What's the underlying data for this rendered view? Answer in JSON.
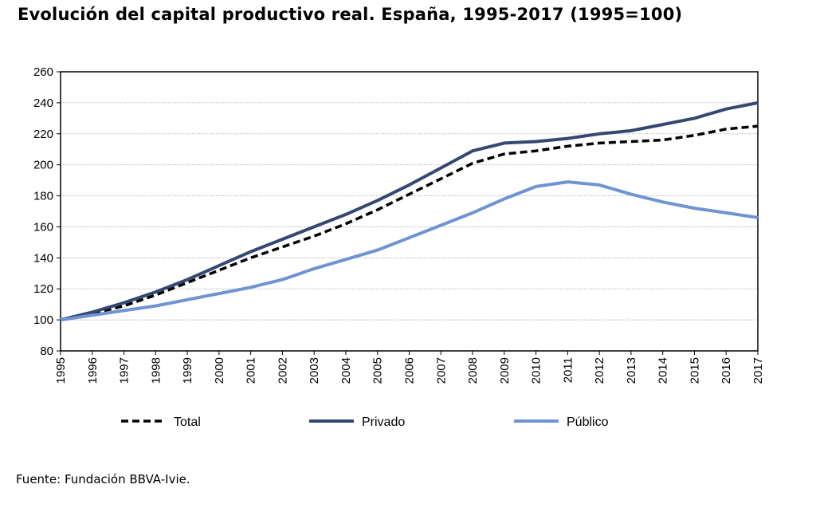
{
  "chart_data": {
    "type": "line",
    "title": "Evolución del capital productivo real. España, 1995-2017 (1995=100)",
    "xlabel": "",
    "ylabel": "",
    "categories": [
      "1995",
      "1996",
      "1997",
      "1998",
      "1999",
      "2000",
      "2001",
      "2002",
      "2003",
      "2004",
      "2005",
      "2006",
      "2007",
      "2008",
      "2009",
      "2010",
      "2011",
      "2012",
      "2013",
      "2014",
      "2015",
      "2016",
      "2017"
    ],
    "ylim": [
      80,
      260
    ],
    "yticks": [
      80,
      100,
      120,
      140,
      160,
      180,
      200,
      220,
      240,
      260
    ],
    "grid": true,
    "legend_position": "bottom",
    "series": [
      {
        "name": "Total",
        "color": "#000000",
        "style": "dashed",
        "values": [
          100,
          104,
          109,
          116,
          124,
          132,
          140,
          147,
          154,
          162,
          171,
          181,
          191,
          201,
          207,
          209,
          212,
          214,
          215,
          216,
          219,
          223,
          225
        ]
      },
      {
        "name": "Privado",
        "color": "#364872",
        "style": "solid",
        "values": [
          100,
          105,
          111,
          118,
          126,
          135,
          144,
          152,
          160,
          168,
          177,
          187,
          198,
          209,
          214,
          215,
          217,
          220,
          222,
          226,
          230,
          236,
          240
        ]
      },
      {
        "name": "Público",
        "color": "#6f94d2",
        "style": "solid",
        "values": [
          100,
          103,
          106,
          109,
          113,
          117,
          121,
          126,
          133,
          139,
          145,
          153,
          161,
          169,
          178,
          186,
          189,
          187,
          181,
          176,
          172,
          169,
          166
        ]
      }
    ]
  },
  "source": "Fuente: Fundación BBVA-Ivie."
}
